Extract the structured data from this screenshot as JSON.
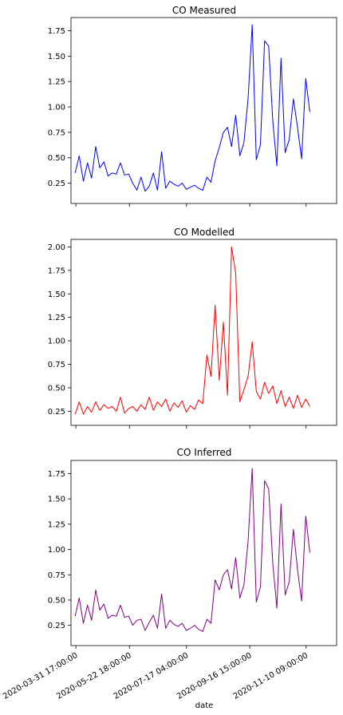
{
  "chart_data": [
    {
      "type": "line",
      "title": "CO Measured",
      "color": "#0000ff",
      "ylim": [
        0.05,
        1.88
      ],
      "yticks": [
        0.25,
        0.5,
        0.75,
        1.0,
        1.25,
        1.5,
        1.75
      ],
      "ytick_labels": [
        "0.25",
        "0.50",
        "0.75",
        "1.00",
        "1.25",
        "1.50",
        "1.75"
      ],
      "xticks": [
        "2020-03-31 17:00:00",
        "2020-05-22 18:00:00",
        "2020-07-17 04:00:00",
        "2020-09-16 15:00:00",
        "2020-11-10 09:00:00"
      ],
      "xlim": [
        "2020-03-27",
        "2020-12-10"
      ],
      "x": [
        "2020-03-31",
        "2020-04-04",
        "2020-04-08",
        "2020-04-12",
        "2020-04-16",
        "2020-04-20",
        "2020-04-24",
        "2020-04-28",
        "2020-05-02",
        "2020-05-06",
        "2020-05-10",
        "2020-05-14",
        "2020-05-18",
        "2020-05-22",
        "2020-05-26",
        "2020-05-30",
        "2020-06-03",
        "2020-06-07",
        "2020-06-11",
        "2020-06-15",
        "2020-06-19",
        "2020-06-23",
        "2020-06-27",
        "2020-07-01",
        "2020-07-05",
        "2020-07-09",
        "2020-07-13",
        "2020-07-17",
        "2020-07-21",
        "2020-07-25",
        "2020-07-29",
        "2020-08-02",
        "2020-08-06",
        "2020-08-10",
        "2020-08-14",
        "2020-08-18",
        "2020-08-22",
        "2020-08-26",
        "2020-08-30",
        "2020-09-03",
        "2020-09-07",
        "2020-09-11",
        "2020-09-15",
        "2020-09-19",
        "2020-09-23",
        "2020-09-27",
        "2020-10-01",
        "2020-10-05",
        "2020-10-09",
        "2020-10-13",
        "2020-10-17",
        "2020-10-21",
        "2020-10-25",
        "2020-10-29",
        "2020-11-02",
        "2020-11-06",
        "2020-11-10",
        "2020-11-14"
      ],
      "y": [
        0.35,
        0.52,
        0.27,
        0.45,
        0.3,
        0.61,
        0.4,
        0.46,
        0.32,
        0.35,
        0.34,
        0.45,
        0.33,
        0.34,
        0.25,
        0.18,
        0.31,
        0.17,
        0.22,
        0.35,
        0.18,
        0.56,
        0.2,
        0.27,
        0.24,
        0.22,
        0.25,
        0.19,
        0.21,
        0.23,
        0.2,
        0.18,
        0.31,
        0.26,
        0.47,
        0.6,
        0.75,
        0.8,
        0.61,
        0.92,
        0.52,
        0.65,
        1.08,
        1.81,
        0.48,
        0.63,
        1.65,
        1.6,
        0.86,
        0.42,
        1.48,
        0.55,
        0.68,
        1.08,
        0.8,
        0.49,
        1.28,
        0.95
      ]
    },
    {
      "type": "line",
      "title": "CO Modelled",
      "color": "#ff0000",
      "ylim": [
        0.1,
        2.08
      ],
      "yticks": [
        0.25,
        0.5,
        0.75,
        1.0,
        1.25,
        1.5,
        1.75,
        2.0
      ],
      "ytick_labels": [
        "0.25",
        "0.50",
        "0.75",
        "1.00",
        "1.25",
        "1.50",
        "1.75",
        "2.00"
      ],
      "xticks": [
        "2020-03-31 17:00:00",
        "2020-05-22 18:00:00",
        "2020-07-17 04:00:00",
        "2020-09-16 15:00:00",
        "2020-11-10 09:00:00"
      ],
      "xlim": [
        "2020-03-27",
        "2020-12-10"
      ],
      "x": [
        "2020-03-31",
        "2020-04-04",
        "2020-04-08",
        "2020-04-12",
        "2020-04-16",
        "2020-04-20",
        "2020-04-24",
        "2020-04-28",
        "2020-05-02",
        "2020-05-06",
        "2020-05-10",
        "2020-05-14",
        "2020-05-18",
        "2020-05-22",
        "2020-05-26",
        "2020-05-30",
        "2020-06-03",
        "2020-06-07",
        "2020-06-11",
        "2020-06-15",
        "2020-06-19",
        "2020-06-23",
        "2020-06-27",
        "2020-07-01",
        "2020-07-05",
        "2020-07-09",
        "2020-07-13",
        "2020-07-17",
        "2020-07-21",
        "2020-07-25",
        "2020-07-29",
        "2020-08-02",
        "2020-08-06",
        "2020-08-10",
        "2020-08-14",
        "2020-08-18",
        "2020-08-22",
        "2020-08-26",
        "2020-08-30",
        "2020-09-03",
        "2020-09-07",
        "2020-09-11",
        "2020-09-15",
        "2020-09-19",
        "2020-09-23",
        "2020-09-27",
        "2020-10-01",
        "2020-10-05",
        "2020-10-09",
        "2020-10-13",
        "2020-10-17",
        "2020-10-21",
        "2020-10-25",
        "2020-10-29",
        "2020-11-02",
        "2020-11-06",
        "2020-11-10",
        "2020-11-14"
      ],
      "y": [
        0.22,
        0.35,
        0.22,
        0.3,
        0.24,
        0.35,
        0.26,
        0.32,
        0.28,
        0.3,
        0.25,
        0.4,
        0.23,
        0.28,
        0.3,
        0.25,
        0.32,
        0.27,
        0.4,
        0.26,
        0.35,
        0.3,
        0.38,
        0.25,
        0.34,
        0.29,
        0.36,
        0.24,
        0.31,
        0.27,
        0.37,
        0.33,
        0.85,
        0.62,
        1.38,
        0.58,
        1.2,
        0.42,
        2.0,
        1.72,
        0.35,
        0.48,
        0.62,
        0.99,
        0.46,
        0.38,
        0.56,
        0.44,
        0.52,
        0.33,
        0.47,
        0.3,
        0.4,
        0.28,
        0.42,
        0.29,
        0.38,
        0.3
      ]
    },
    {
      "type": "line",
      "title": "CO Inferred",
      "color": "#800080",
      "xlabel": "date",
      "ylim": [
        0.05,
        1.88
      ],
      "yticks": [
        0.25,
        0.5,
        0.75,
        1.0,
        1.25,
        1.5,
        1.75
      ],
      "ytick_labels": [
        "0.25",
        "0.50",
        "0.75",
        "1.00",
        "1.25",
        "1.50",
        "1.75"
      ],
      "xticks": [
        "2020-03-31 17:00:00",
        "2020-05-22 18:00:00",
        "2020-07-17 04:00:00",
        "2020-09-16 15:00:00",
        "2020-11-10 09:00:00"
      ],
      "xlim": [
        "2020-03-27",
        "2020-12-10"
      ],
      "x": [
        "2020-03-31",
        "2020-04-04",
        "2020-04-08",
        "2020-04-12",
        "2020-04-16",
        "2020-04-20",
        "2020-04-24",
        "2020-04-28",
        "2020-05-02",
        "2020-05-06",
        "2020-05-10",
        "2020-05-14",
        "2020-05-18",
        "2020-05-22",
        "2020-05-26",
        "2020-05-30",
        "2020-06-03",
        "2020-06-07",
        "2020-06-11",
        "2020-06-15",
        "2020-06-19",
        "2020-06-23",
        "2020-06-27",
        "2020-07-01",
        "2020-07-05",
        "2020-07-09",
        "2020-07-13",
        "2020-07-17",
        "2020-07-21",
        "2020-07-25",
        "2020-07-29",
        "2020-08-02",
        "2020-08-06",
        "2020-08-10",
        "2020-08-14",
        "2020-08-18",
        "2020-08-22",
        "2020-08-26",
        "2020-08-30",
        "2020-09-03",
        "2020-09-07",
        "2020-09-11",
        "2020-09-15",
        "2020-09-19",
        "2020-09-23",
        "2020-09-27",
        "2020-10-01",
        "2020-10-05",
        "2020-10-09",
        "2020-10-13",
        "2020-10-17",
        "2020-10-21",
        "2020-10-25",
        "2020-10-29",
        "2020-11-02",
        "2020-11-06",
        "2020-11-10",
        "2020-11-14"
      ],
      "y": [
        0.34,
        0.52,
        0.27,
        0.45,
        0.3,
        0.6,
        0.4,
        0.46,
        0.32,
        0.35,
        0.34,
        0.45,
        0.33,
        0.34,
        0.25,
        0.3,
        0.31,
        0.2,
        0.28,
        0.35,
        0.22,
        0.56,
        0.22,
        0.3,
        0.26,
        0.24,
        0.27,
        0.2,
        0.22,
        0.25,
        0.21,
        0.19,
        0.31,
        0.27,
        0.7,
        0.6,
        0.75,
        0.8,
        0.61,
        0.92,
        0.52,
        0.65,
        1.08,
        1.8,
        0.48,
        0.63,
        1.68,
        1.6,
        0.86,
        0.42,
        1.45,
        0.55,
        0.68,
        1.2,
        0.8,
        0.49,
        1.33,
        0.97
      ]
    }
  ]
}
